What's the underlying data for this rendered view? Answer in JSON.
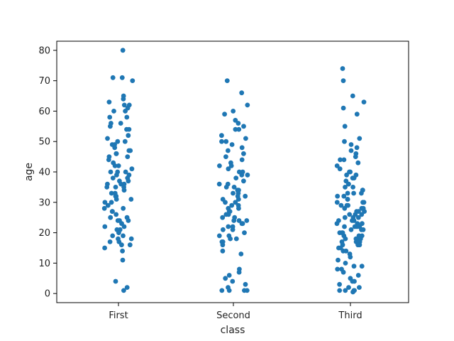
{
  "chart_data": {
    "type": "scatter",
    "subtype": "strip",
    "title": "",
    "xlabel": "class",
    "ylabel": "age",
    "categories": [
      "First",
      "Second",
      "Third"
    ],
    "ylim": [
      -3,
      83
    ],
    "yticks": [
      0,
      10,
      20,
      30,
      40,
      50,
      60,
      70,
      80
    ],
    "grid": false,
    "marker_color": "#1f77b4",
    "series": [
      {
        "category": "First",
        "values": [
          80,
          71,
          71,
          70,
          65,
          64,
          63,
          62,
          62,
          61,
          60,
          60,
          58,
          58,
          56,
          56,
          55,
          54,
          54,
          52,
          51,
          50,
          50,
          49,
          49,
          48,
          47,
          47,
          46,
          46,
          45,
          45,
          44,
          43,
          42,
          42,
          41,
          40,
          40,
          40,
          39,
          39,
          38,
          38,
          37,
          37,
          36,
          36,
          36,
          35,
          35,
          35,
          34,
          33,
          33,
          32,
          32,
          31,
          31,
          30,
          30,
          29,
          28,
          28,
          27,
          27,
          26,
          25,
          25,
          24,
          24,
          24,
          23,
          22,
          22,
          21,
          21,
          20,
          19,
          19,
          18,
          18,
          17,
          17,
          16,
          16,
          15,
          14,
          11,
          4,
          2,
          1
        ]
      },
      {
        "category": "Second",
        "values": [
          70,
          66,
          62,
          60,
          59,
          57,
          56,
          55,
          54,
          54,
          52,
          51,
          50,
          50,
          49,
          48,
          47,
          46,
          45,
          44,
          43,
          42,
          42,
          41,
          40,
          40,
          39,
          39,
          38,
          37,
          36,
          36,
          35,
          35,
          34,
          34,
          33,
          33,
          32,
          32,
          31,
          31,
          30,
          30,
          29,
          29,
          28,
          28,
          27,
          27,
          26,
          26,
          25,
          25,
          24,
          24,
          24,
          23,
          23,
          22,
          22,
          21,
          21,
          20,
          19,
          19,
          18,
          18,
          17,
          17,
          16,
          14,
          13,
          8,
          7,
          6,
          5,
          4,
          3,
          2,
          1,
          1,
          1,
          1
        ]
      },
      {
        "category": "Third",
        "values": [
          74,
          70,
          65,
          63,
          61,
          59,
          55,
          51,
          50,
          49,
          48,
          47,
          46,
          45,
          44,
          44,
          43,
          42,
          41,
          40,
          40,
          39,
          39,
          38,
          38,
          37,
          36,
          36,
          35,
          35,
          34,
          34,
          33,
          33,
          33,
          32,
          32,
          31,
          31,
          30,
          30,
          30,
          29,
          29,
          29,
          28,
          28,
          28,
          27,
          27,
          27,
          26,
          26,
          26,
          25,
          25,
          25,
          24,
          24,
          24,
          23,
          23,
          23,
          22,
          22,
          22,
          22,
          21,
          21,
          21,
          20,
          20,
          20,
          19,
          19,
          19,
          18,
          18,
          18,
          18,
          17,
          17,
          17,
          16,
          16,
          16,
          15,
          15,
          14,
          14,
          13,
          12,
          11,
          10,
          9,
          9,
          8,
          8,
          7,
          6,
          5,
          4,
          4,
          3,
          2,
          2,
          1,
          1,
          1,
          1,
          0.5
        ]
      }
    ]
  }
}
